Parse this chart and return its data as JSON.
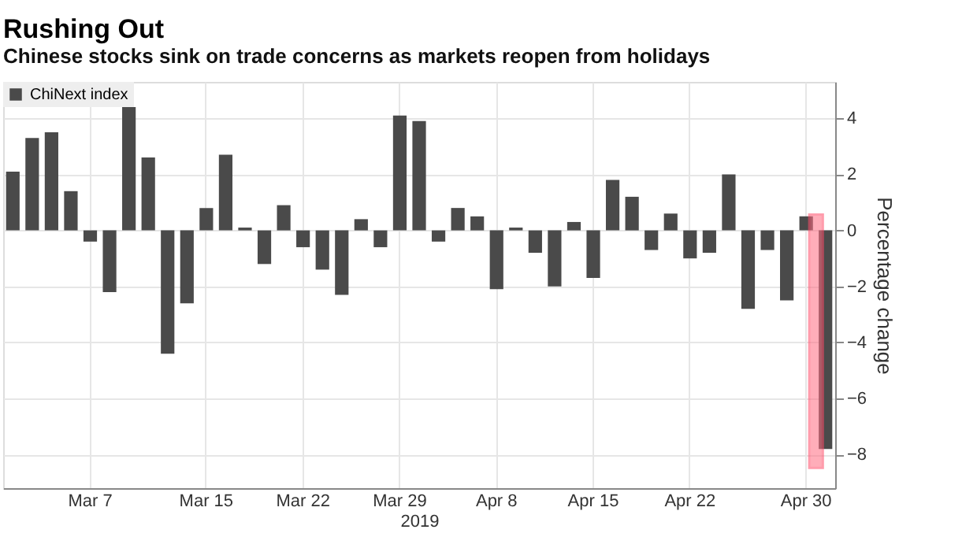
{
  "chart_data": {
    "type": "bar",
    "title": "Rushing Out",
    "subtitle": "Chinese stocks sink on trade concerns as markets reopen from holidays",
    "categories": [
      null,
      null,
      null,
      null,
      "Mar 7",
      null,
      null,
      null,
      null,
      null,
      "Mar 15",
      null,
      null,
      null,
      null,
      "Mar 22",
      null,
      null,
      null,
      null,
      "Mar 29",
      null,
      null,
      null,
      null,
      "Apr 8",
      null,
      null,
      null,
      null,
      "Apr 15",
      null,
      null,
      null,
      null,
      "Apr 22",
      null,
      null,
      null,
      null,
      null,
      "Apr 30",
      null
    ],
    "series": [
      {
        "name": "ChiNext index",
        "color": "#4a4a4a",
        "values": [
          2.1,
          3.3,
          3.5,
          1.4,
          -0.4,
          -2.2,
          4.4,
          2.6,
          -4.4,
          -2.6,
          0.8,
          2.7,
          0.1,
          -1.2,
          0.9,
          -0.6,
          -1.4,
          -2.3,
          0.4,
          -0.6,
          4.1,
          3.9,
          -0.4,
          0.8,
          0.5,
          -2.1,
          0.1,
          -0.8,
          -2.0,
          0.3,
          -1.7,
          1.8,
          1.2,
          -0.7,
          0.6,
          -1.0,
          -0.8,
          2.0,
          -2.8,
          -0.7,
          -2.5,
          0.5,
          -7.8
        ]
      }
    ],
    "xlabel": "2019",
    "ylabel": "Percentage change",
    "ylim": [
      -9.2,
      5.3
    ],
    "yticks": [
      -8,
      -6,
      -4,
      -2,
      0,
      2,
      4
    ],
    "grid": true,
    "legend": "top left"
  }
}
